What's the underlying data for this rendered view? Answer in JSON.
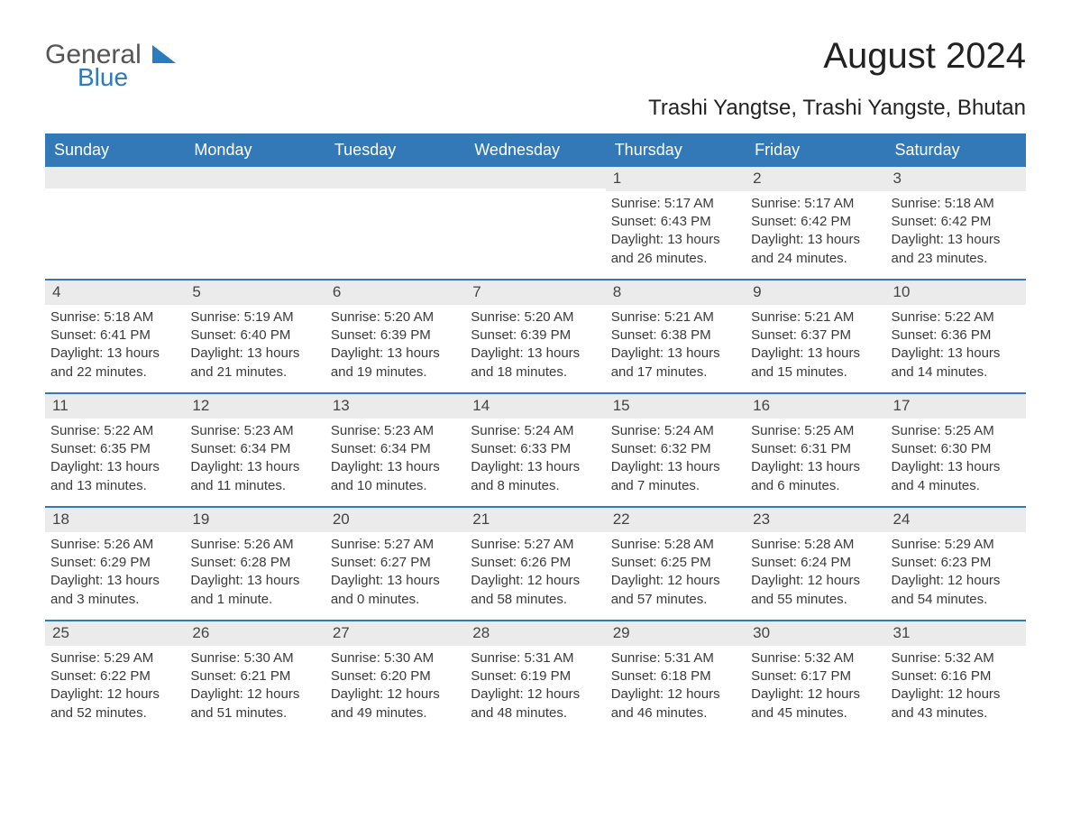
{
  "logo": {
    "text1": "General",
    "text2": "Blue"
  },
  "title": "August 2024",
  "subtitle": "Trashi Yangtse, Trashi Yangste, Bhutan",
  "colors": {
    "header_bg": "#3379b7",
    "header_text": "#ffffff",
    "daynum_bg": "#ebebeb",
    "body_text": "#3a3a3a",
    "week_border": "#3379b7",
    "logo_accent": "#2b7bbf"
  },
  "font_sizes": {
    "title": 40,
    "subtitle": 24,
    "dayhead": 18,
    "daynum": 17,
    "body": 15,
    "logo": 30
  },
  "day_headers": [
    "Sunday",
    "Monday",
    "Tuesday",
    "Wednesday",
    "Thursday",
    "Friday",
    "Saturday"
  ],
  "weeks": [
    [
      null,
      null,
      null,
      null,
      {
        "n": "1",
        "sunrise": "Sunrise: 5:17 AM",
        "sunset": "Sunset: 6:43 PM",
        "day1": "Daylight: 13 hours",
        "day2": "and 26 minutes."
      },
      {
        "n": "2",
        "sunrise": "Sunrise: 5:17 AM",
        "sunset": "Sunset: 6:42 PM",
        "day1": "Daylight: 13 hours",
        "day2": "and 24 minutes."
      },
      {
        "n": "3",
        "sunrise": "Sunrise: 5:18 AM",
        "sunset": "Sunset: 6:42 PM",
        "day1": "Daylight: 13 hours",
        "day2": "and 23 minutes."
      }
    ],
    [
      {
        "n": "4",
        "sunrise": "Sunrise: 5:18 AM",
        "sunset": "Sunset: 6:41 PM",
        "day1": "Daylight: 13 hours",
        "day2": "and 22 minutes."
      },
      {
        "n": "5",
        "sunrise": "Sunrise: 5:19 AM",
        "sunset": "Sunset: 6:40 PM",
        "day1": "Daylight: 13 hours",
        "day2": "and 21 minutes."
      },
      {
        "n": "6",
        "sunrise": "Sunrise: 5:20 AM",
        "sunset": "Sunset: 6:39 PM",
        "day1": "Daylight: 13 hours",
        "day2": "and 19 minutes."
      },
      {
        "n": "7",
        "sunrise": "Sunrise: 5:20 AM",
        "sunset": "Sunset: 6:39 PM",
        "day1": "Daylight: 13 hours",
        "day2": "and 18 minutes."
      },
      {
        "n": "8",
        "sunrise": "Sunrise: 5:21 AM",
        "sunset": "Sunset: 6:38 PM",
        "day1": "Daylight: 13 hours",
        "day2": "and 17 minutes."
      },
      {
        "n": "9",
        "sunrise": "Sunrise: 5:21 AM",
        "sunset": "Sunset: 6:37 PM",
        "day1": "Daylight: 13 hours",
        "day2": "and 15 minutes."
      },
      {
        "n": "10",
        "sunrise": "Sunrise: 5:22 AM",
        "sunset": "Sunset: 6:36 PM",
        "day1": "Daylight: 13 hours",
        "day2": "and 14 minutes."
      }
    ],
    [
      {
        "n": "11",
        "sunrise": "Sunrise: 5:22 AM",
        "sunset": "Sunset: 6:35 PM",
        "day1": "Daylight: 13 hours",
        "day2": "and 13 minutes."
      },
      {
        "n": "12",
        "sunrise": "Sunrise: 5:23 AM",
        "sunset": "Sunset: 6:34 PM",
        "day1": "Daylight: 13 hours",
        "day2": "and 11 minutes."
      },
      {
        "n": "13",
        "sunrise": "Sunrise: 5:23 AM",
        "sunset": "Sunset: 6:34 PM",
        "day1": "Daylight: 13 hours",
        "day2": "and 10 minutes."
      },
      {
        "n": "14",
        "sunrise": "Sunrise: 5:24 AM",
        "sunset": "Sunset: 6:33 PM",
        "day1": "Daylight: 13 hours",
        "day2": "and 8 minutes."
      },
      {
        "n": "15",
        "sunrise": "Sunrise: 5:24 AM",
        "sunset": "Sunset: 6:32 PM",
        "day1": "Daylight: 13 hours",
        "day2": "and 7 minutes."
      },
      {
        "n": "16",
        "sunrise": "Sunrise: 5:25 AM",
        "sunset": "Sunset: 6:31 PM",
        "day1": "Daylight: 13 hours",
        "day2": "and 6 minutes."
      },
      {
        "n": "17",
        "sunrise": "Sunrise: 5:25 AM",
        "sunset": "Sunset: 6:30 PM",
        "day1": "Daylight: 13 hours",
        "day2": "and 4 minutes."
      }
    ],
    [
      {
        "n": "18",
        "sunrise": "Sunrise: 5:26 AM",
        "sunset": "Sunset: 6:29 PM",
        "day1": "Daylight: 13 hours",
        "day2": "and 3 minutes."
      },
      {
        "n": "19",
        "sunrise": "Sunrise: 5:26 AM",
        "sunset": "Sunset: 6:28 PM",
        "day1": "Daylight: 13 hours",
        "day2": "and 1 minute."
      },
      {
        "n": "20",
        "sunrise": "Sunrise: 5:27 AM",
        "sunset": "Sunset: 6:27 PM",
        "day1": "Daylight: 13 hours",
        "day2": "and 0 minutes."
      },
      {
        "n": "21",
        "sunrise": "Sunrise: 5:27 AM",
        "sunset": "Sunset: 6:26 PM",
        "day1": "Daylight: 12 hours",
        "day2": "and 58 minutes."
      },
      {
        "n": "22",
        "sunrise": "Sunrise: 5:28 AM",
        "sunset": "Sunset: 6:25 PM",
        "day1": "Daylight: 12 hours",
        "day2": "and 57 minutes."
      },
      {
        "n": "23",
        "sunrise": "Sunrise: 5:28 AM",
        "sunset": "Sunset: 6:24 PM",
        "day1": "Daylight: 12 hours",
        "day2": "and 55 minutes."
      },
      {
        "n": "24",
        "sunrise": "Sunrise: 5:29 AM",
        "sunset": "Sunset: 6:23 PM",
        "day1": "Daylight: 12 hours",
        "day2": "and 54 minutes."
      }
    ],
    [
      {
        "n": "25",
        "sunrise": "Sunrise: 5:29 AM",
        "sunset": "Sunset: 6:22 PM",
        "day1": "Daylight: 12 hours",
        "day2": "and 52 minutes."
      },
      {
        "n": "26",
        "sunrise": "Sunrise: 5:30 AM",
        "sunset": "Sunset: 6:21 PM",
        "day1": "Daylight: 12 hours",
        "day2": "and 51 minutes."
      },
      {
        "n": "27",
        "sunrise": "Sunrise: 5:30 AM",
        "sunset": "Sunset: 6:20 PM",
        "day1": "Daylight: 12 hours",
        "day2": "and 49 minutes."
      },
      {
        "n": "28",
        "sunrise": "Sunrise: 5:31 AM",
        "sunset": "Sunset: 6:19 PM",
        "day1": "Daylight: 12 hours",
        "day2": "and 48 minutes."
      },
      {
        "n": "29",
        "sunrise": "Sunrise: 5:31 AM",
        "sunset": "Sunset: 6:18 PM",
        "day1": "Daylight: 12 hours",
        "day2": "and 46 minutes."
      },
      {
        "n": "30",
        "sunrise": "Sunrise: 5:32 AM",
        "sunset": "Sunset: 6:17 PM",
        "day1": "Daylight: 12 hours",
        "day2": "and 45 minutes."
      },
      {
        "n": "31",
        "sunrise": "Sunrise: 5:32 AM",
        "sunset": "Sunset: 6:16 PM",
        "day1": "Daylight: 12 hours",
        "day2": "and 43 minutes."
      }
    ]
  ]
}
